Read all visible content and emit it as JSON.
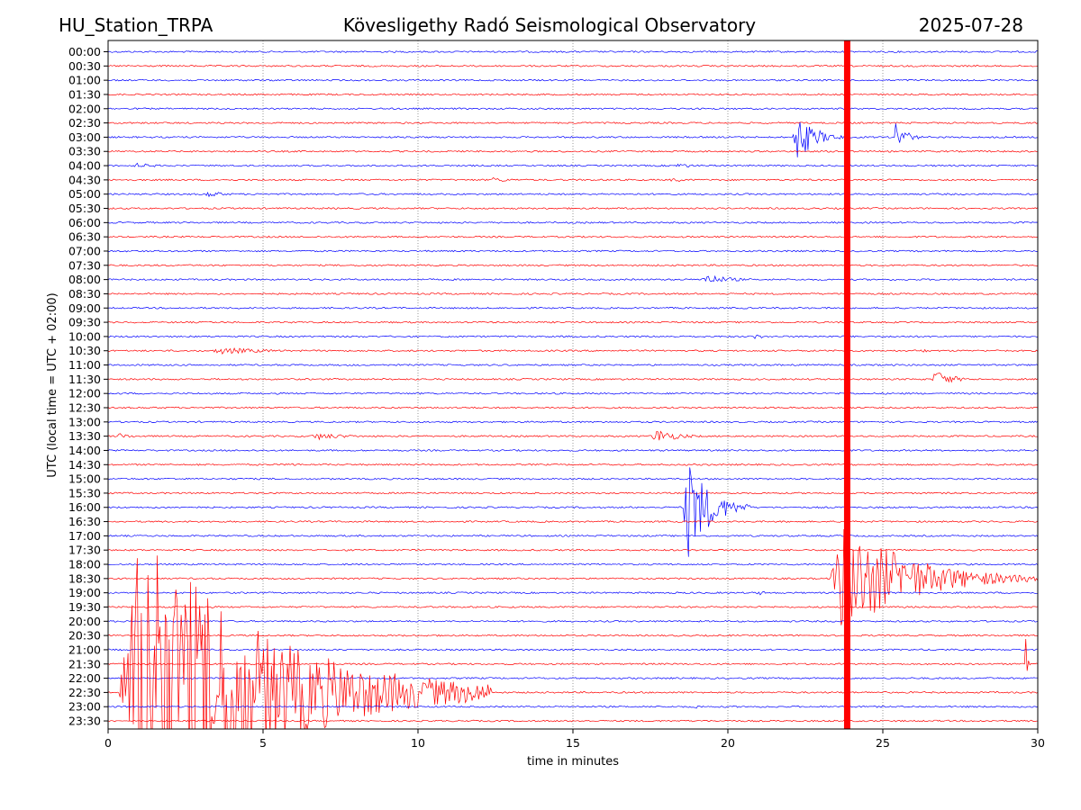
{
  "header": {
    "station": "HU_Station_TRPA",
    "observatory": "Kövesligethy Radó Seismological Observatory",
    "date": "2025-07-28"
  },
  "chart_data": {
    "type": "line",
    "title": "Kövesligethy Radó Seismological Observatory",
    "xlabel": "time in minutes",
    "ylabel": "UTC (local time = UTC + 02:00)",
    "xlim": [
      0,
      30
    ],
    "xticks": [
      "0",
      "5",
      "10",
      "15",
      "20",
      "25",
      "30"
    ],
    "xtick_values": [
      0,
      5,
      10,
      15,
      20,
      25,
      30
    ],
    "grid": "vertical dotted",
    "row_labels": [
      "00:00",
      "00:30",
      "01:00",
      "01:30",
      "02:00",
      "02:30",
      "03:00",
      "03:30",
      "04:00",
      "04:30",
      "05:00",
      "05:30",
      "06:00",
      "06:30",
      "07:00",
      "07:30",
      "08:00",
      "08:30",
      "09:00",
      "09:30",
      "10:00",
      "10:30",
      "11:00",
      "11:30",
      "12:00",
      "12:30",
      "13:00",
      "13:30",
      "14:00",
      "14:30",
      "15:00",
      "15:30",
      "16:00",
      "16:30",
      "17:00",
      "17:30",
      "18:00",
      "18:30",
      "19:00",
      "19:30",
      "20:00",
      "20:30",
      "21:00",
      "21:30",
      "22:00",
      "22:30",
      "23:00",
      "23:30"
    ],
    "colors": {
      "even_rows": "#0000ff",
      "odd_rows": "#ff0000",
      "marker": "#ff0000"
    },
    "marker_minute": 23.85,
    "events": [
      {
        "row": "00:00",
        "start": 19.85,
        "duration": 0.1,
        "amplitude": 4
      },
      {
        "row": "03:00",
        "start": 22.1,
        "duration": 1.8,
        "amplitude": 28
      },
      {
        "row": "03:00",
        "start": 25.35,
        "duration": 1.0,
        "amplitude": 20
      },
      {
        "row": "04:00",
        "start": 0.8,
        "duration": 2.2,
        "amplitude": 3
      },
      {
        "row": "04:00",
        "start": 18.3,
        "duration": 1.8,
        "amplitude": 3
      },
      {
        "row": "04:30",
        "start": 12.3,
        "duration": 2.2,
        "amplitude": 3
      },
      {
        "row": "04:30",
        "start": 18.1,
        "duration": 1.6,
        "amplitude": 3
      },
      {
        "row": "05:00",
        "start": 3.1,
        "duration": 1.8,
        "amplitude": 4
      },
      {
        "row": "08:00",
        "start": 19.1,
        "duration": 2.6,
        "amplitude": 6
      },
      {
        "row": "10:00",
        "start": 20.8,
        "duration": 1.2,
        "amplitude": 3
      },
      {
        "row": "10:30",
        "start": 3.3,
        "duration": 5.0,
        "amplitude": 4
      },
      {
        "row": "10:30",
        "start": 26.2,
        "duration": 0.5,
        "amplitude": 4
      },
      {
        "row": "11:30",
        "start": 26.6,
        "duration": 1.6,
        "amplitude": 11
      },
      {
        "row": "13:30",
        "start": 0.3,
        "duration": 1.2,
        "amplitude": 4
      },
      {
        "row": "13:30",
        "start": 6.5,
        "duration": 3.4,
        "amplitude": 4
      },
      {
        "row": "13:30",
        "start": 17.5,
        "duration": 2.2,
        "amplitude": 9
      },
      {
        "row": "14:30",
        "start": 5.8,
        "duration": 0.9,
        "amplitude": 3
      },
      {
        "row": "16:00",
        "start": 18.55,
        "duration": 2.2,
        "amplitude": 60
      },
      {
        "row": "18:30",
        "start": 23.3,
        "duration": 6.7,
        "amplitude": 65
      },
      {
        "row": "19:00",
        "start": 20.9,
        "duration": 1.0,
        "amplitude": 3
      },
      {
        "row": "21:30",
        "start": 29.6,
        "duration": 0.15,
        "amplitude": 45
      },
      {
        "row": "22:30",
        "start": 0.35,
        "duration": 12.0,
        "amplitude": 190
      },
      {
        "row": "23:00",
        "start": 18.9,
        "duration": 0.6,
        "amplitude": 3
      }
    ]
  }
}
